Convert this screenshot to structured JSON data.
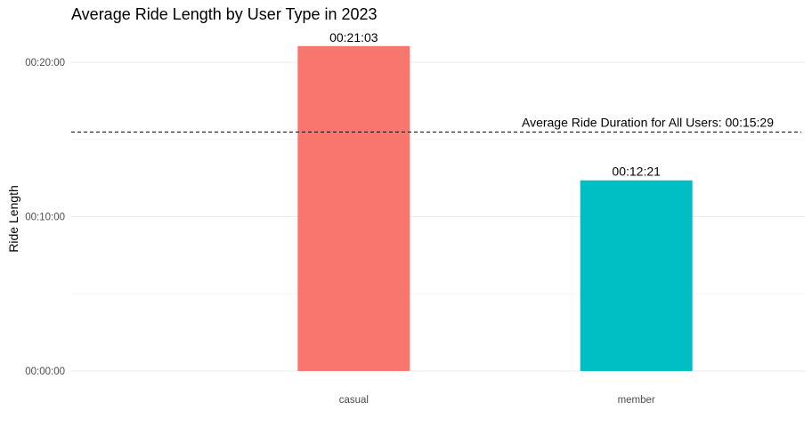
{
  "chart_data": {
    "type": "bar",
    "title": "Average Ride Length by User Type in 2023",
    "xlabel": "",
    "ylabel": "Ride Length",
    "categories": [
      "casual",
      "member"
    ],
    "values": [
      1263,
      741
    ],
    "value_labels": [
      "00:21:03",
      "00:12:21"
    ],
    "colors": [
      "#F8766D",
      "#00BFC4"
    ],
    "y_unit": "seconds",
    "ylim": [
      0,
      1270
    ],
    "y_ticks": [
      0,
      600,
      1200
    ],
    "y_tick_labels": [
      "00:00:00",
      "00:10:00",
      "00:20:00"
    ],
    "reference_line": {
      "value": 929,
      "label": "Average Ride Duration for All Users: 00:15:29",
      "style": "dashed"
    },
    "grid": true,
    "legend": "none"
  }
}
